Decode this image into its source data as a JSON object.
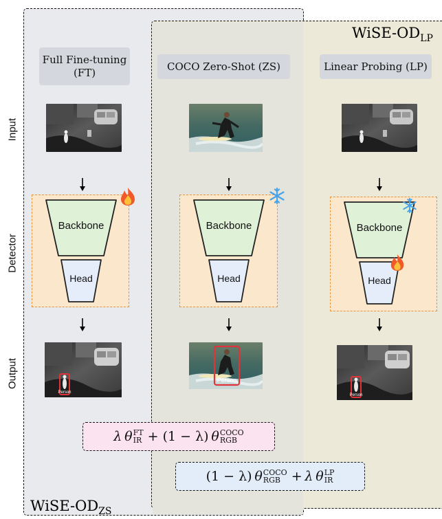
{
  "regions": {
    "zs_label_main": "WiSE-OD",
    "zs_label_sub": "ZS",
    "lp_label_main": "WiSE-OD",
    "lp_label_sub": "LP"
  },
  "rows": {
    "input": "Input",
    "detector": "Detector",
    "output": "Output"
  },
  "columns": [
    {
      "header": "Full Fine-tuning (FT)"
    },
    {
      "header": "COCO Zero-Shot (ZS)"
    },
    {
      "header": "Linear Probing (LP)"
    }
  ],
  "network": {
    "backbone": "Backbone",
    "head": "Head"
  },
  "detection_label": "Person",
  "icons": {
    "fire": "fire-icon",
    "frozen": "snowflake-icon"
  },
  "formulas": {
    "zs": {
      "lambda": "λ",
      "theta": "θ",
      "ft_sup": "FT",
      "ir_sub": "IR",
      "plus": "+",
      "one_minus": "(1 − λ)",
      "coco_sup": "COCO",
      "rgb_sub": "RGB"
    },
    "lp": {
      "one_minus": "(1 − λ)",
      "theta": "θ",
      "coco_sup": "COCO",
      "rgb_sub": "RGB",
      "plus": "+",
      "lambda": "λ",
      "lp_sup": "LP",
      "ir_sub": "IR"
    }
  },
  "colors": {
    "detector_fill": "#fbe7cc",
    "detector_border": "#e9923a",
    "backbone_fill": "#dff2d8",
    "head_fill": "#e6edfa",
    "bbox": "#e0343a"
  }
}
